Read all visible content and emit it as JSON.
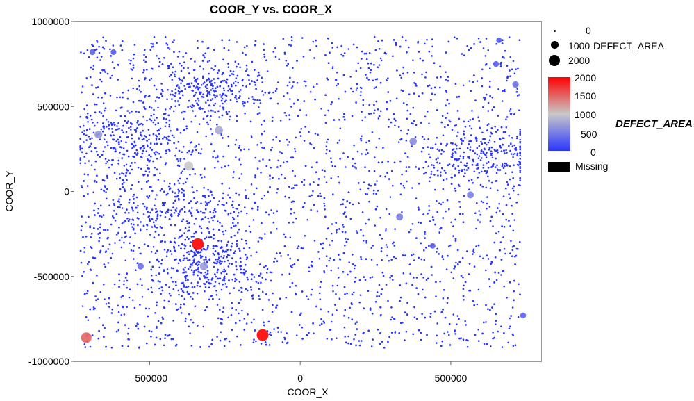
{
  "chart_data": {
    "type": "scatter",
    "title": "COOR_Y vs. COOR_X",
    "xlabel": "COOR_X",
    "ylabel": "COOR_Y",
    "xlim": [
      -750000,
      800000
    ],
    "ylim": [
      -1000000,
      1000000
    ],
    "x_ticks": [
      "-500000",
      "0",
      "500000"
    ],
    "x_tick_values": [
      -500000,
      0,
      500000
    ],
    "y_ticks": [
      "1000000",
      "500000",
      "0",
      "-500000",
      "-1000000"
    ],
    "y_tick_values": [
      1000000,
      500000,
      0,
      -500000,
      -1000000
    ],
    "grid": false,
    "size_legend": {
      "title": "DEFECT_AREA",
      "labels": [
        "0",
        "1000",
        "2000"
      ],
      "values": [
        0,
        1000,
        2000
      ]
    },
    "color_legend": {
      "title": "DEFECT_AREA",
      "tick_labels": [
        "2000",
        "1500",
        "1000",
        "500",
        "0"
      ],
      "tick_values": [
        2000,
        1500,
        1000,
        500,
        0
      ],
      "color_low": "#2a35ff",
      "color_mid": "#c8c8c8",
      "color_high": "#ff0000",
      "missing_label": "Missing",
      "missing_color": "#000000"
    },
    "background_cloud": {
      "description_count": 5000,
      "x_range": [
        -730000,
        730000
      ],
      "y_range": [
        -920000,
        910000
      ],
      "defect_area": 0,
      "color": "#2a35ff"
    },
    "highlighted_points": [
      {
        "x": -340000,
        "y": -310000,
        "defect_area": 2000
      },
      {
        "x": -125000,
        "y": -845000,
        "defect_area": 2000
      },
      {
        "x": -710000,
        "y": -860000,
        "defect_area": 1500
      },
      {
        "x": -370000,
        "y": 150000,
        "defect_area": 1000
      },
      {
        "x": -270000,
        "y": 360000,
        "defect_area": 800
      },
      {
        "x": -670000,
        "y": 335000,
        "defect_area": 700
      },
      {
        "x": -320000,
        "y": -440000,
        "defect_area": 700
      },
      {
        "x": 375000,
        "y": 295000,
        "defect_area": 600
      },
      {
        "x": 565000,
        "y": -20000,
        "defect_area": 500
      },
      {
        "x": 330000,
        "y": -150000,
        "defect_area": 500
      },
      {
        "x": -530000,
        "y": -440000,
        "defect_area": 400
      },
      {
        "x": 715000,
        "y": 630000,
        "defect_area": 400
      },
      {
        "x": -690000,
        "y": 820000,
        "defect_area": 300
      },
      {
        "x": 650000,
        "y": 750000,
        "defect_area": 300
      },
      {
        "x": 740000,
        "y": -730000,
        "defect_area": 300
      },
      {
        "x": 440000,
        "y": -320000,
        "defect_area": 250
      },
      {
        "x": -620000,
        "y": 820000,
        "defect_area": 250
      },
      {
        "x": 660000,
        "y": 890000,
        "defect_area": 250
      }
    ]
  }
}
